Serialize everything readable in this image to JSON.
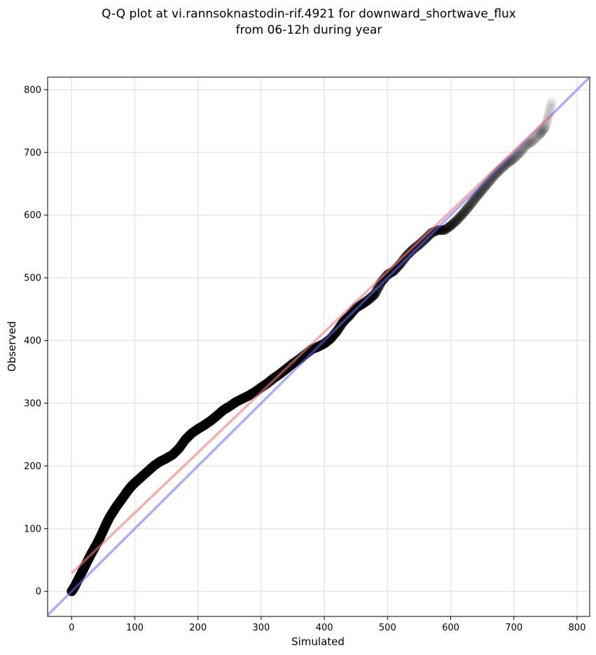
{
  "chart_data": {
    "type": "scatter",
    "title_lines": [
      "Q-Q plot at vi.rannsoknastodin-rif.4921 for downward_shortwave_flux",
      "from 06-12h during year"
    ],
    "xlabel": "Simulated",
    "ylabel": "Observed",
    "xlim": [
      -38,
      820
    ],
    "ylim": [
      -40,
      820
    ],
    "xticks": [
      0,
      100,
      200,
      300,
      400,
      500,
      600,
      700,
      800
    ],
    "yticks": [
      0,
      100,
      200,
      300,
      400,
      500,
      600,
      700,
      800
    ],
    "grid": true,
    "colors": {
      "points": "#000000",
      "identity_line": "#6a6aff",
      "fit_line": "#f07a7a"
    },
    "identity_line": {
      "x": [
        -38,
        820
      ],
      "y": [
        -38,
        820
      ]
    },
    "fit_line": {
      "x": [
        0,
        760
      ],
      "y": [
        29,
        760
      ]
    },
    "qq_points": {
      "x": [
        0,
        2,
        5,
        10,
        15,
        20,
        25,
        30,
        35,
        40,
        45,
        50,
        55,
        60,
        65,
        70,
        75,
        80,
        85,
        90,
        95,
        100,
        110,
        120,
        130,
        140,
        150,
        160,
        170,
        180,
        190,
        200,
        210,
        220,
        230,
        240,
        250,
        260,
        270,
        280,
        290,
        300,
        310,
        320,
        330,
        340,
        350,
        360,
        370,
        380,
        390,
        400,
        410,
        420,
        430,
        440,
        450,
        460,
        470,
        480,
        490,
        500,
        510,
        520,
        530,
        540,
        550,
        560,
        570,
        580,
        590,
        600,
        610,
        620,
        630,
        640,
        650,
        660,
        670,
        680,
        690,
        700,
        710,
        720,
        730,
        740,
        745,
        750,
        755,
        760
      ],
      "y": [
        0,
        3,
        8,
        18,
        28,
        38,
        48,
        58,
        67,
        76,
        86,
        97,
        108,
        118,
        126,
        134,
        141,
        148,
        155,
        162,
        168,
        173,
        182,
        191,
        200,
        207,
        212,
        218,
        228,
        242,
        252,
        259,
        265,
        272,
        280,
        289,
        295,
        302,
        307,
        312,
        318,
        325,
        332,
        340,
        347,
        355,
        363,
        370,
        378,
        386,
        390,
        395,
        403,
        415,
        430,
        440,
        452,
        458,
        465,
        474,
        493,
        505,
        511,
        522,
        535,
        545,
        553,
        562,
        572,
        576,
        576,
        583,
        592,
        603,
        615,
        628,
        640,
        652,
        664,
        674,
        683,
        690,
        700,
        712,
        718,
        728,
        734,
        741,
        760,
        780
      ]
    }
  }
}
